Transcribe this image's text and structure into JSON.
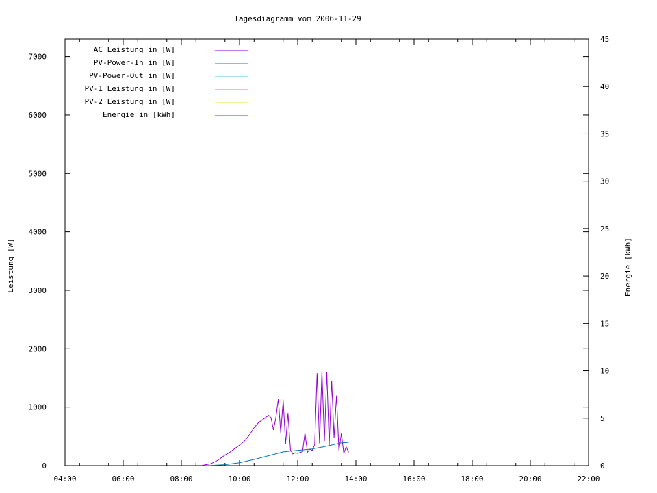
{
  "chart_data": {
    "type": "line",
    "title": "Tagesdiagramm vom 2006-11-29",
    "ylabel": "Leistung [W]",
    "y2label": "Energie [kWh]",
    "xlim": [
      "04:00",
      "22:00"
    ],
    "ylim": [
      0,
      7300
    ],
    "y2lim": [
      0,
      45
    ],
    "x_ticks": [
      "04:00",
      "06:00",
      "08:00",
      "10:00",
      "12:00",
      "14:00",
      "16:00",
      "18:00",
      "20:00",
      "22:00"
    ],
    "y_ticks": [
      "0",
      "1000",
      "2000",
      "3000",
      "4000",
      "5000",
      "6000",
      "7000"
    ],
    "y2_ticks": [
      "0",
      "5",
      "10",
      "15",
      "20",
      "25",
      "30",
      "35",
      "40",
      "45"
    ],
    "legend_position": "top-left",
    "series": [
      {
        "name": "AC Leistung in [W]",
        "axis": "left",
        "color": "#9400d3",
        "x": [
          "08:40",
          "09:00",
          "09:15",
          "09:30",
          "09:40",
          "09:50",
          "10:00",
          "10:10",
          "10:20",
          "10:30",
          "10:40",
          "10:50",
          "11:00",
          "11:05",
          "11:10",
          "11:15",
          "11:20",
          "11:25",
          "11:30",
          "11:35",
          "11:40",
          "11:45",
          "11:50",
          "11:55",
          "12:00",
          "12:10",
          "12:15",
          "12:20",
          "12:25",
          "12:30",
          "12:35",
          "12:40",
          "12:45",
          "12:50",
          "12:55",
          "13:00",
          "13:05",
          "13:10",
          "13:15",
          "13:20",
          "13:25",
          "13:30",
          "13:35",
          "13:40",
          "13:45"
        ],
        "y": [
          0,
          30,
          90,
          180,
          230,
          290,
          350,
          420,
          520,
          650,
          740,
          800,
          860,
          820,
          610,
          820,
          1140,
          560,
          1120,
          370,
          900,
          270,
          200,
          220,
          210,
          240,
          560,
          230,
          280,
          260,
          360,
          1580,
          380,
          1620,
          420,
          1600,
          350,
          1450,
          480,
          1200,
          260,
          550,
          210,
          320,
          230
        ]
      },
      {
        "name": "PV-Power-In in [W]",
        "axis": "left",
        "color": "#009e73",
        "x": [],
        "y": []
      },
      {
        "name": "PV-Power-Out in [W]",
        "axis": "left",
        "color": "#56b4e9",
        "x": [],
        "y": []
      },
      {
        "name": "PV-1 Leistung in [W]",
        "axis": "left",
        "color": "#e69f00",
        "x": [],
        "y": []
      },
      {
        "name": "PV-2 Leistung in [W]",
        "axis": "left",
        "color": "#f0e442",
        "x": [],
        "y": []
      },
      {
        "name": "Energie in [kWh]",
        "axis": "right",
        "color": "#0072b2",
        "x": [
          "08:40",
          "09:00",
          "09:30",
          "10:00",
          "10:30",
          "11:00",
          "11:30",
          "12:00",
          "12:30",
          "13:00",
          "13:30",
          "13:45"
        ],
        "y": [
          0,
          0.02,
          0.1,
          0.3,
          0.65,
          1.05,
          1.45,
          1.6,
          1.75,
          2.05,
          2.4,
          2.45
        ]
      }
    ]
  }
}
